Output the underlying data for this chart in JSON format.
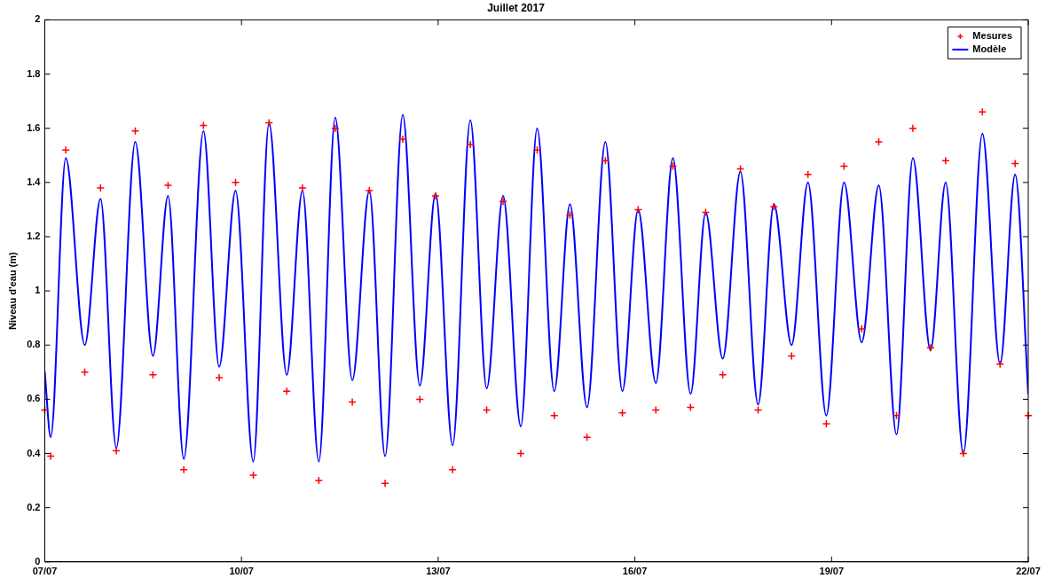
{
  "chart_data": {
    "type": "line",
    "title": "Juillet 2017",
    "ylabel": "Niveau d'eau (m)",
    "x": [
      "2017-07-07T00:00",
      "2017-07-07T02:10",
      "2017-07-07T07:41",
      "2017-07-07T14:38",
      "2017-07-07T20:24",
      "2017-07-08T02:10",
      "2017-07-08T09:07",
      "2017-07-08T15:36",
      "2017-07-08T21:07",
      "2017-07-09T02:53",
      "2017-07-09T10:05",
      "2017-07-09T15:50",
      "2017-07-09T21:50",
      "2017-07-10T04:19",
      "2017-07-10T10:05",
      "2017-07-10T16:34",
      "2017-07-10T22:19",
      "2017-07-11T04:19",
      "2017-07-11T10:19",
      "2017-07-11T16:34",
      "2017-07-11T22:48",
      "2017-07-12T04:34",
      "2017-07-12T11:02",
      "2017-07-12T17:17",
      "2017-07-12T23:02",
      "2017-07-13T05:17",
      "2017-07-13T11:46",
      "2017-07-13T17:46",
      "2017-07-13T23:46",
      "2017-07-14T06:14",
      "2017-07-14T12:14",
      "2017-07-14T18:29",
      "2017-07-15T00:14",
      "2017-07-15T06:29",
      "2017-07-15T13:12",
      "2017-07-15T19:26",
      "2017-07-16T01:12",
      "2017-07-16T07:41",
      "2017-07-16T13:55",
      "2017-07-16T20:24",
      "2017-07-17T01:55",
      "2017-07-17T08:10",
      "2017-07-17T14:38",
      "2017-07-17T21:07",
      "2017-07-18T02:53",
      "2017-07-18T09:22",
      "2017-07-18T15:22",
      "2017-07-18T22:05",
      "2017-07-19T04:34",
      "2017-07-19T11:02",
      "2017-07-19T17:17",
      "2017-07-19T23:46",
      "2017-07-20T05:46",
      "2017-07-20T12:14",
      "2017-07-20T17:46",
      "2017-07-21T00:14",
      "2017-07-21T07:12",
      "2017-07-21T13:41",
      "2017-07-21T19:12",
      "2017-07-22T00:00"
    ],
    "series": [
      {
        "name": "Mesures",
        "type": "scatter",
        "marker": "cross",
        "color": "#ff0000",
        "values": [
          0.56,
          0.39,
          1.52,
          0.7,
          1.38,
          0.41,
          1.59,
          0.69,
          1.39,
          0.34,
          1.61,
          0.68,
          1.4,
          0.32,
          1.62,
          0.63,
          1.38,
          0.3,
          1.6,
          0.59,
          1.37,
          0.29,
          1.56,
          0.6,
          1.35,
          0.34,
          1.54,
          0.56,
          1.33,
          0.4,
          1.52,
          0.54,
          1.28,
          0.46,
          1.48,
          0.55,
          1.3,
          0.56,
          1.46,
          0.57,
          1.29,
          0.69,
          1.45,
          0.56,
          1.31,
          0.76,
          1.43,
          0.51,
          1.46,
          0.86,
          1.55,
          0.54,
          1.6,
          0.79,
          1.48,
          0.4,
          1.66,
          0.73,
          1.47,
          0.54
        ]
      },
      {
        "name": "Modèle",
        "type": "line",
        "color": "#0000ff",
        "values": [
          0.7,
          0.46,
          1.49,
          0.8,
          1.34,
          0.42,
          1.55,
          0.76,
          1.35,
          0.38,
          1.59,
          0.72,
          1.37,
          0.37,
          1.62,
          0.69,
          1.37,
          0.37,
          1.64,
          0.67,
          1.37,
          0.39,
          1.65,
          0.65,
          1.36,
          0.43,
          1.63,
          0.64,
          1.35,
          0.5,
          1.6,
          0.63,
          1.32,
          0.57,
          1.55,
          0.63,
          1.3,
          0.66,
          1.49,
          0.62,
          1.29,
          0.75,
          1.44,
          0.58,
          1.32,
          0.8,
          1.4,
          0.54,
          1.4,
          0.81,
          1.39,
          0.47,
          1.49,
          0.78,
          1.4,
          0.4,
          1.58,
          0.73,
          1.43,
          0.62
        ]
      }
    ],
    "xlim": [
      "2017-07-07",
      "2017-07-22"
    ],
    "xticks": [
      {
        "value": "2017-07-07",
        "label": "07/07"
      },
      {
        "value": "2017-07-10",
        "label": "10/07"
      },
      {
        "value": "2017-07-13",
        "label": "13/07"
      },
      {
        "value": "2017-07-16",
        "label": "16/07"
      },
      {
        "value": "2017-07-19",
        "label": "19/07"
      },
      {
        "value": "2017-07-22",
        "label": "22/07"
      }
    ],
    "ylim": [
      0,
      2
    ],
    "yticks": [
      0,
      0.2,
      0.4,
      0.6,
      0.8,
      1,
      1.2,
      1.4,
      1.6,
      1.8,
      2
    ],
    "grid": false,
    "legend": "top right",
    "line_style": "solid"
  }
}
